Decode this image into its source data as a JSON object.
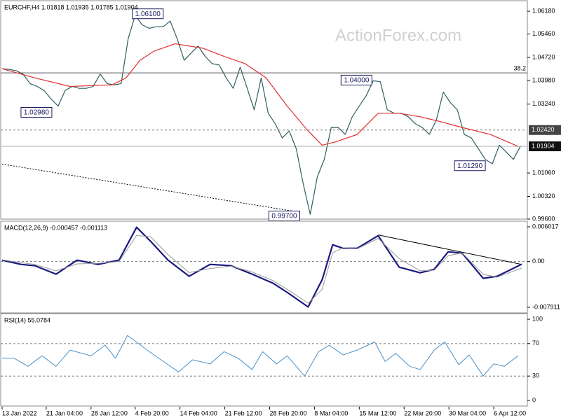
{
  "chart_data": [
    {
      "type": "line",
      "title": "EURCHF,H4  1.01818 1.01935 1.01785 1.01904",
      "watermark": "ActionForex.com",
      "xlim": [
        0,
        75
      ],
      "ylim": [
        0.996,
        1.0647
      ],
      "yticks": [
        {
          "value": 1.0618,
          "label": "1.06180"
        },
        {
          "value": 1.0546,
          "label": "1.05460"
        },
        {
          "value": 1.0472,
          "label": "1.04720"
        },
        {
          "value": 1.0398,
          "label": "1.03980"
        },
        {
          "value": 1.0324,
          "label": "1.03240"
        },
        {
          "value": 1.0106,
          "label": "1.01060"
        },
        {
          "value": 1.0032,
          "label": "1.00320"
        },
        {
          "value": 0.996,
          "label": "0.99600"
        }
      ],
      "series": [
        {
          "color": "#2f5f5f",
          "x": [
            0,
            1,
            2,
            3,
            4,
            5,
            6,
            7,
            8,
            9,
            10,
            11,
            12,
            13,
            14,
            15,
            16,
            17,
            18,
            19,
            20,
            21,
            22,
            23,
            24,
            25,
            26,
            27,
            28,
            29,
            30,
            31,
            32,
            33,
            34,
            35,
            36,
            37,
            38,
            39,
            40,
            41,
            42,
            43,
            44,
            45,
            46,
            47,
            48,
            49,
            50,
            51,
            52,
            53,
            54,
            55,
            56,
            57,
            58,
            59,
            60,
            61,
            62,
            63,
            64,
            65,
            66,
            67,
            68,
            69,
            70,
            71,
            72,
            73,
            74
          ],
          "values": [
            1.0436,
            1.0434,
            1.043,
            1.0419,
            1.0389,
            1.038,
            1.0367,
            1.034,
            1.0318,
            1.0367,
            1.038,
            1.0374,
            1.0374,
            1.038,
            1.0419,
            1.0389,
            1.0385,
            1.0389,
            1.0531,
            1.0605,
            1.0575,
            1.0564,
            1.0569,
            1.0569,
            1.0587,
            1.0531,
            1.0463,
            1.0486,
            1.0508,
            1.0475,
            1.0452,
            1.0448,
            1.0407,
            1.0374,
            1.0441,
            1.0374,
            1.0306,
            1.0407,
            1.0295,
            1.0262,
            1.0217,
            1.0239,
            1.0183,
            1.0071,
            0.9975,
            1.0093,
            1.0149,
            1.025,
            1.025,
            1.0228,
            1.0284,
            1.0318,
            1.0351,
            1.0398,
            1.0395,
            1.0306,
            1.0295,
            1.0295,
            1.0284,
            1.0262,
            1.025,
            1.0228,
            1.0273,
            1.0362,
            1.0329,
            1.0306,
            1.0228,
            1.0217,
            1.0183,
            1.0149,
            1.0135,
            1.0194,
            1.0172,
            1.0149,
            1.019
          ]
        },
        {
          "color": "#e03030",
          "x": [
            0,
            4.7,
            9.7,
            15.7,
            17.7,
            19.7,
            21.7,
            24.7,
            28.7,
            31.7,
            34.7,
            37.7,
            40.7,
            43.7,
            45.7,
            47.7,
            50.7,
            53.7,
            56.7,
            59.7,
            62.7,
            65.7,
            69.7,
            73.7
          ],
          "values": [
            1.0436,
            1.0407,
            1.038,
            1.0385,
            1.0407,
            1.0463,
            1.0492,
            1.0515,
            1.0501,
            1.0475,
            1.0452,
            1.0407,
            1.0318,
            1.0239,
            1.0194,
            1.0205,
            1.0228,
            1.0295,
            1.0295,
            1.0284,
            1.0268,
            1.025,
            1.0228,
            1.019
          ]
        }
      ],
      "trendline": {
        "x": [
          0,
          42.7
        ],
        "values": [
          1.0134,
          0.9981
        ]
      },
      "levels": [
        {
          "value": 1.0423,
          "label": "38.2",
          "style": "solid"
        },
        {
          "value": 1.0242,
          "label": "1.02420",
          "style": "dashed"
        },
        {
          "value": 1.01904,
          "label": "1.01904",
          "style": "current"
        }
      ],
      "annotations": [
        {
          "label": "1.06100",
          "value": 1.061,
          "x": 20.8
        },
        {
          "label": "1.04000",
          "value": 1.04,
          "x": 50.6
        },
        {
          "label": "1.02980",
          "value": 1.0298,
          "x": 4.9
        },
        {
          "label": "1.01290",
          "value": 1.0129,
          "x": 66.8
        },
        {
          "label": "0.99700",
          "value": 0.997,
          "x": 40.3
        }
      ]
    },
    {
      "type": "line",
      "title": "MACD(12,26,9) -0.000457 -0.001113",
      "xlim": [
        0,
        75
      ],
      "ylim": [
        -0.00888,
        0.00674
      ],
      "yticks": [
        0.006017,
        {
          "value": 0,
          "label": "0.00"
        },
        -0.007911
      ],
      "levels": [
        0
      ],
      "series": [
        {
          "color": "#1a1a80",
          "width": 2.2,
          "x": [
            0,
            2.7,
            4.7,
            7.7,
            10.7,
            13.7,
            16.7,
            19.2,
            21.2,
            23.7,
            26.7,
            29.7,
            32.7,
            35.7,
            38.7,
            40.7,
            43.7,
            45.7,
            47.2,
            48.7,
            50.7,
            53.7,
            56.7,
            59.7,
            61.7,
            63.7,
            65.7,
            68.7,
            70.7,
            74.2
          ],
          "values": [
            0.000242,
            -0.000484,
            -0.000726,
            -0.002178,
            0.000242,
            -0.000484,
            0.000242,
            0.005929,
            0.003509,
            0.000242,
            -0.002541,
            -0.000484,
            -0.000726,
            -0.002178,
            -0.003751,
            -0.005324,
            -0.00785,
            -0.003146,
            0.002904,
            0.002299,
            0.002299,
            0.004477,
            -0.000968,
            -0.001936,
            -0.001331,
            0.001694,
            0.001452,
            -0.002904,
            -0.002541,
            -0.000457
          ]
        },
        {
          "color": "#9a9a9a",
          "width": 1,
          "x": [
            0,
            2.7,
            4.7,
            7.7,
            10.7,
            13.7,
            16.7,
            19.2,
            21.2,
            23.7,
            26.7,
            29.7,
            32.7,
            35.7,
            38.7,
            40.7,
            43.7,
            45.7,
            47.2,
            48.7,
            50.7,
            53.7,
            56.7,
            59.7,
            61.7,
            63.7,
            65.7,
            68.7,
            70.7,
            74.2
          ],
          "values": [
            0.0003,
            -0.0002,
            -0.0005,
            -0.0016,
            -0.0004,
            -0.0003,
            0.0,
            0.0045,
            0.0043,
            0.0012,
            -0.0019,
            -0.0012,
            -0.0008,
            -0.0018,
            -0.0033,
            -0.0048,
            -0.0072,
            -0.0048,
            0.0015,
            0.0024,
            0.0022,
            0.004,
            0.0005,
            -0.0016,
            -0.0015,
            0.001,
            0.0015,
            -0.0022,
            -0.0027,
            -0.001113
          ]
        }
      ],
      "trendline": {
        "x": [
          53.7,
          74.2
        ],
        "values": [
          0.0046,
          -0.0005
        ]
      }
    },
    {
      "type": "line",
      "title": "RSI(14) 55.0784",
      "xlim": [
        0,
        75
      ],
      "ylim": [
        -6.9,
        105.2
      ],
      "yticks": [
        100,
        70,
        30,
        0
      ],
      "levels": [
        70,
        30
      ],
      "xticks": [
        {
          "value": 0,
          "label": "13 Jan 2022"
        },
        {
          "value": 6.3,
          "label": "21 Jan 04:00"
        },
        {
          "value": 12.7,
          "label": "28 Jan 12:00"
        },
        {
          "value": 19.0,
          "label": "4 Feb 20:00"
        },
        {
          "value": 25.4,
          "label": "14 Feb 04:00"
        },
        {
          "value": 31.8,
          "label": "21 Feb 12:00"
        },
        {
          "value": 38.2,
          "label": "28 Feb 20:00"
        },
        {
          "value": 44.6,
          "label": "8 Mar 04:00"
        },
        {
          "value": 51.0,
          "label": "15 Mar 12:00"
        },
        {
          "value": 57.4,
          "label": "22 Mar 20:00"
        },
        {
          "value": 63.8,
          "label": "30 Mar 04:00"
        },
        {
          "value": 70.2,
          "label": "6 Apr 12:00"
        }
      ],
      "series": [
        {
          "color": "#4a90c8",
          "width": 1,
          "x": [
            0,
            1.7,
            3.7,
            5.7,
            7.7,
            9.7,
            12.7,
            14.7,
            16.2,
            17.9,
            19.2,
            20.7,
            22.7,
            25.2,
            27.2,
            29.7,
            31.7,
            33.7,
            35.7,
            37.2,
            39.2,
            40.7,
            43.2,
            45.2,
            46.7,
            48.7,
            50.7,
            53.2,
            54.7,
            56.2,
            58.2,
            59.7,
            61.7,
            63.2,
            65.2,
            66.7,
            68.7,
            70.2,
            71.7,
            73.7
          ],
          "values": [
            52,
            52,
            42,
            55,
            42,
            62,
            55,
            68,
            52,
            80,
            72,
            62,
            50,
            35,
            50,
            45,
            60,
            52,
            38,
            60,
            45,
            55,
            30,
            60,
            68,
            56,
            62,
            72,
            48,
            58,
            42,
            38,
            62,
            72,
            44,
            56,
            30,
            45,
            42,
            55.0784
          ]
        }
      ]
    }
  ]
}
